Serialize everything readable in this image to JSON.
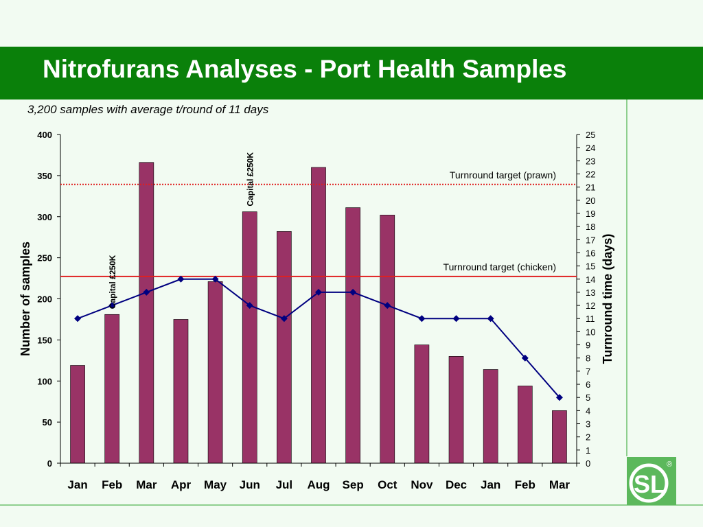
{
  "header": {
    "title": "Nitrofurans Analyses - Port Health Samples"
  },
  "subtitle": "3,200 samples with average t/round of 11 days",
  "logo": {
    "text": "SL",
    "mark": "®"
  },
  "chart_data": {
    "type": "bar",
    "categories": [
      "Jan",
      "Feb",
      "Mar",
      "Apr",
      "May",
      "Jun",
      "Jul",
      "Aug",
      "Sep",
      "Oct",
      "Nov",
      "Dec",
      "Jan",
      "Feb",
      "Mar"
    ],
    "series": [
      {
        "type": "bar",
        "axis": "left",
        "values": [
          119,
          181,
          366,
          175,
          221,
          306,
          282,
          360,
          311,
          302,
          144,
          130,
          114,
          94,
          64
        ]
      },
      {
        "type": "line",
        "axis": "right",
        "values": [
          11,
          12,
          13,
          14,
          14,
          12,
          11,
          13,
          13,
          12,
          11,
          11,
          11,
          8,
          5
        ]
      }
    ],
    "ylabel": "Number of samples",
    "ylabel_right": "Turnround time (days)",
    "ylim": [
      0,
      400
    ],
    "yticks": [
      0,
      50,
      100,
      150,
      200,
      250,
      300,
      350,
      400
    ],
    "ylim_right": [
      0,
      25
    ],
    "yticks_right": [
      0,
      1,
      2,
      3,
      4,
      5,
      6,
      7,
      8,
      9,
      10,
      11,
      12,
      13,
      14,
      15,
      16,
      17,
      18,
      19,
      20,
      21,
      22,
      23,
      24,
      25
    ],
    "reference_lines": [
      {
        "label": "Turnround target (prawn)",
        "value": 21.2,
        "axis": "right",
        "style": "dotted",
        "color": "#e02020"
      },
      {
        "label": "Turnround target (chicken)",
        "value": 14.2,
        "axis": "right",
        "style": "solid",
        "color": "#e02020"
      }
    ],
    "annotations": [
      {
        "text": "Capital £250K",
        "category_index": 1
      },
      {
        "text": "Capital £250K",
        "category_index": 5
      }
    ],
    "colors": {
      "bar": "#993366",
      "line": "#000080",
      "reference": "#e02020"
    },
    "grid": false
  }
}
